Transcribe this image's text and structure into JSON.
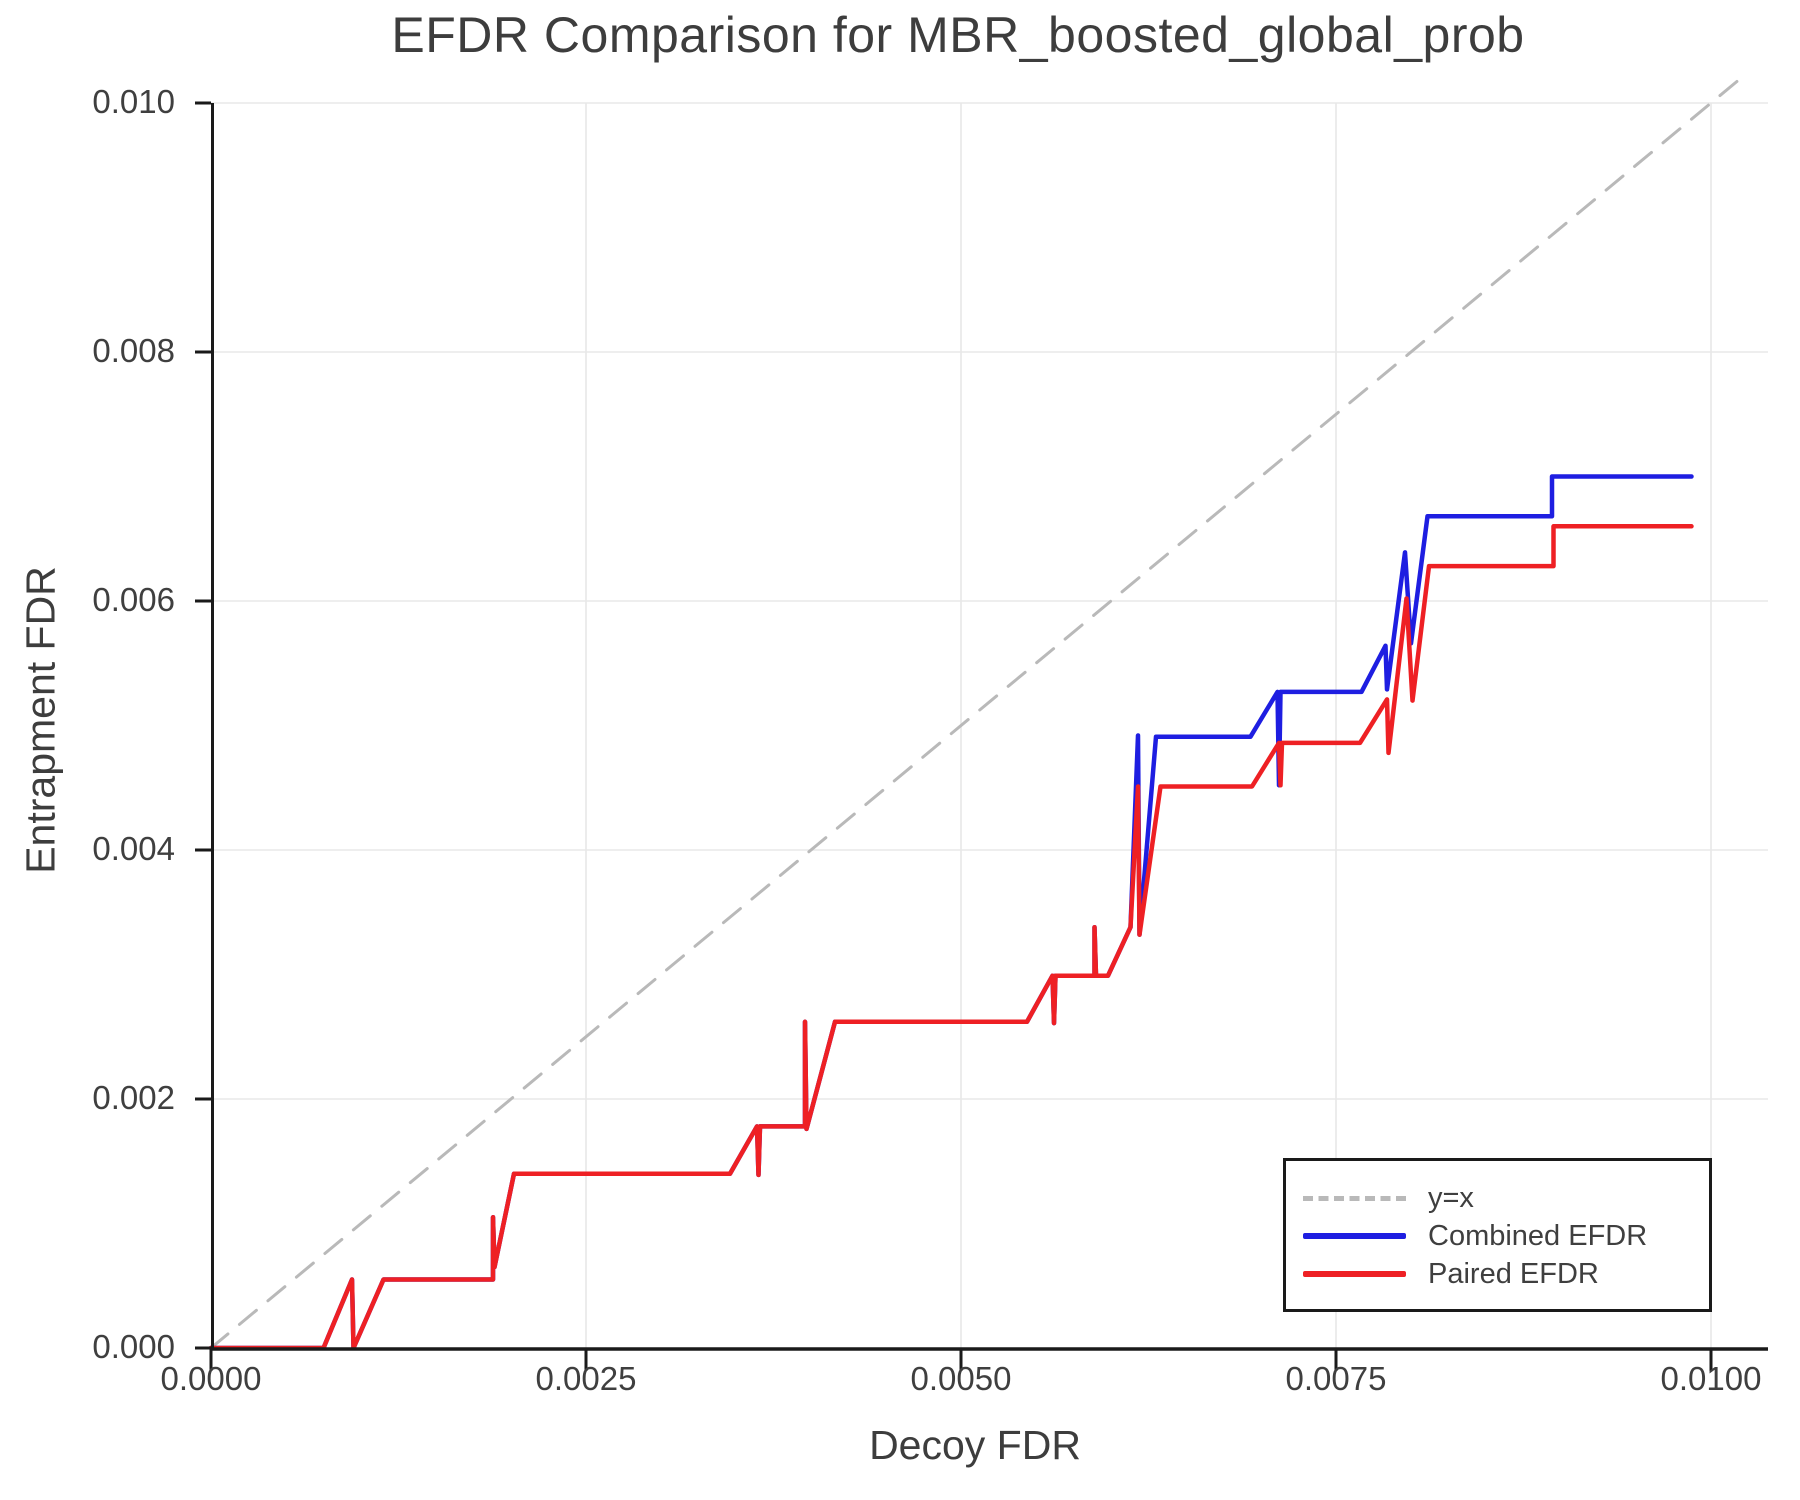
{
  "title": "EFDR Comparison for MBR_boosted_global_prob",
  "axes": {
    "x_label": "Decoy FDR",
    "y_label": "Entrapment FDR",
    "x_ticks": [
      {
        "label": "0.0000",
        "value": 0.0
      },
      {
        "label": "0.0025",
        "value": 0.0025
      },
      {
        "label": "0.0050",
        "value": 0.005
      },
      {
        "label": "0.0075",
        "value": 0.0075
      },
      {
        "label": "0.0100",
        "value": 0.01
      }
    ],
    "y_ticks": [
      {
        "label": "0.000",
        "value": 0.0
      },
      {
        "label": "0.002",
        "value": 0.002
      },
      {
        "label": "0.004",
        "value": 0.004
      },
      {
        "label": "0.006",
        "value": 0.006
      },
      {
        "label": "0.008",
        "value": 0.008
      },
      {
        "label": "0.010",
        "value": 0.01
      }
    ]
  },
  "legend": {
    "items": [
      {
        "label": "y=x",
        "color": "#b9b9b9",
        "dash": true
      },
      {
        "label": "Combined EFDR",
        "color": "#1e1ee1",
        "dash": false
      },
      {
        "label": "Paired EFDR",
        "color": "#ee2024",
        "dash": false
      }
    ]
  },
  "chart_data": {
    "type": "line",
    "title": "EFDR Comparison for MBR_boosted_global_prob",
    "xlabel": "Decoy FDR",
    "ylabel": "Entrapment FDR",
    "xlim": [
      0.0,
      0.0104
    ],
    "ylim": [
      0.0,
      0.01
    ],
    "grid": true,
    "legend_position": "lower right",
    "series": [
      {
        "name": "y=x",
        "color": "#b9b9b9",
        "style": "dashed",
        "width": 3,
        "points": [
          [
            0.0,
            0.0
          ],
          [
            0.0102,
            0.0102
          ]
        ]
      },
      {
        "name": "Combined EFDR",
        "color": "#1e1ee1",
        "style": "solid",
        "width": 4.5,
        "points": [
          [
            0.0,
            0.0
          ],
          [
            0.00075,
            0.0
          ],
          [
            0.00094,
            0.00055
          ],
          [
            0.00095,
            0.0
          ],
          [
            0.00115,
            0.00055
          ],
          [
            0.00188,
            0.00055
          ],
          [
            0.00188,
            0.00105
          ],
          [
            0.00189,
            0.00065
          ],
          [
            0.00202,
            0.0014
          ],
          [
            0.00346,
            0.0014
          ],
          [
            0.00364,
            0.00178
          ],
          [
            0.00365,
            0.00139
          ],
          [
            0.00366,
            0.00178
          ],
          [
            0.00396,
            0.00178
          ],
          [
            0.00396,
            0.00262
          ],
          [
            0.00397,
            0.00176
          ],
          [
            0.00416,
            0.00262
          ],
          [
            0.00544,
            0.00262
          ],
          [
            0.00561,
            0.00299
          ],
          [
            0.00562,
            0.00261
          ],
          [
            0.00563,
            0.00299
          ],
          [
            0.00589,
            0.00299
          ],
          [
            0.00589,
            0.00338
          ],
          [
            0.0059,
            0.00299
          ],
          [
            0.00598,
            0.00299
          ],
          [
            0.00613,
            0.00338
          ],
          [
            0.00618,
            0.00492
          ],
          [
            0.00619,
            0.00332
          ],
          [
            0.0063,
            0.00491
          ],
          [
            0.00693,
            0.00491
          ],
          [
            0.00711,
            0.00527
          ],
          [
            0.00712,
            0.00452
          ],
          [
            0.00713,
            0.00527
          ],
          [
            0.00767,
            0.00527
          ],
          [
            0.00783,
            0.00564
          ],
          [
            0.00784,
            0.00529
          ],
          [
            0.00796,
            0.00639
          ],
          [
            0.008,
            0.00566
          ],
          [
            0.00811,
            0.00668
          ],
          [
            0.00894,
            0.00668
          ],
          [
            0.00894,
            0.007
          ],
          [
            0.00987,
            0.007
          ]
        ]
      },
      {
        "name": "Paired EFDR",
        "color": "#ee2024",
        "style": "solid",
        "width": 4.5,
        "points": [
          [
            0.0,
            0.0
          ],
          [
            0.00075,
            0.0
          ],
          [
            0.00094,
            0.00055
          ],
          [
            0.00095,
            0.0
          ],
          [
            0.00115,
            0.00055
          ],
          [
            0.00188,
            0.00055
          ],
          [
            0.00188,
            0.00105
          ],
          [
            0.00189,
            0.00065
          ],
          [
            0.00202,
            0.0014
          ],
          [
            0.00346,
            0.0014
          ],
          [
            0.00364,
            0.00178
          ],
          [
            0.00365,
            0.00139
          ],
          [
            0.00366,
            0.00178
          ],
          [
            0.00396,
            0.00178
          ],
          [
            0.00396,
            0.00262
          ],
          [
            0.00397,
            0.00176
          ],
          [
            0.00416,
            0.00262
          ],
          [
            0.00544,
            0.00262
          ],
          [
            0.00561,
            0.00299
          ],
          [
            0.00562,
            0.00261
          ],
          [
            0.00563,
            0.00299
          ],
          [
            0.00589,
            0.00299
          ],
          [
            0.00589,
            0.00338
          ],
          [
            0.0059,
            0.00299
          ],
          [
            0.00598,
            0.00299
          ],
          [
            0.00613,
            0.00338
          ],
          [
            0.00618,
            0.00451
          ],
          [
            0.00619,
            0.00332
          ],
          [
            0.00633,
            0.00451
          ],
          [
            0.00694,
            0.00451
          ],
          [
            0.00712,
            0.00486
          ],
          [
            0.00713,
            0.00452
          ],
          [
            0.00714,
            0.00486
          ],
          [
            0.00766,
            0.00486
          ],
          [
            0.00784,
            0.00521
          ],
          [
            0.00785,
            0.00478
          ],
          [
            0.00797,
            0.00602
          ],
          [
            0.00801,
            0.0052
          ],
          [
            0.00812,
            0.00628
          ],
          [
            0.00895,
            0.00628
          ],
          [
            0.00895,
            0.0066
          ],
          [
            0.00987,
            0.0066
          ]
        ]
      }
    ]
  }
}
